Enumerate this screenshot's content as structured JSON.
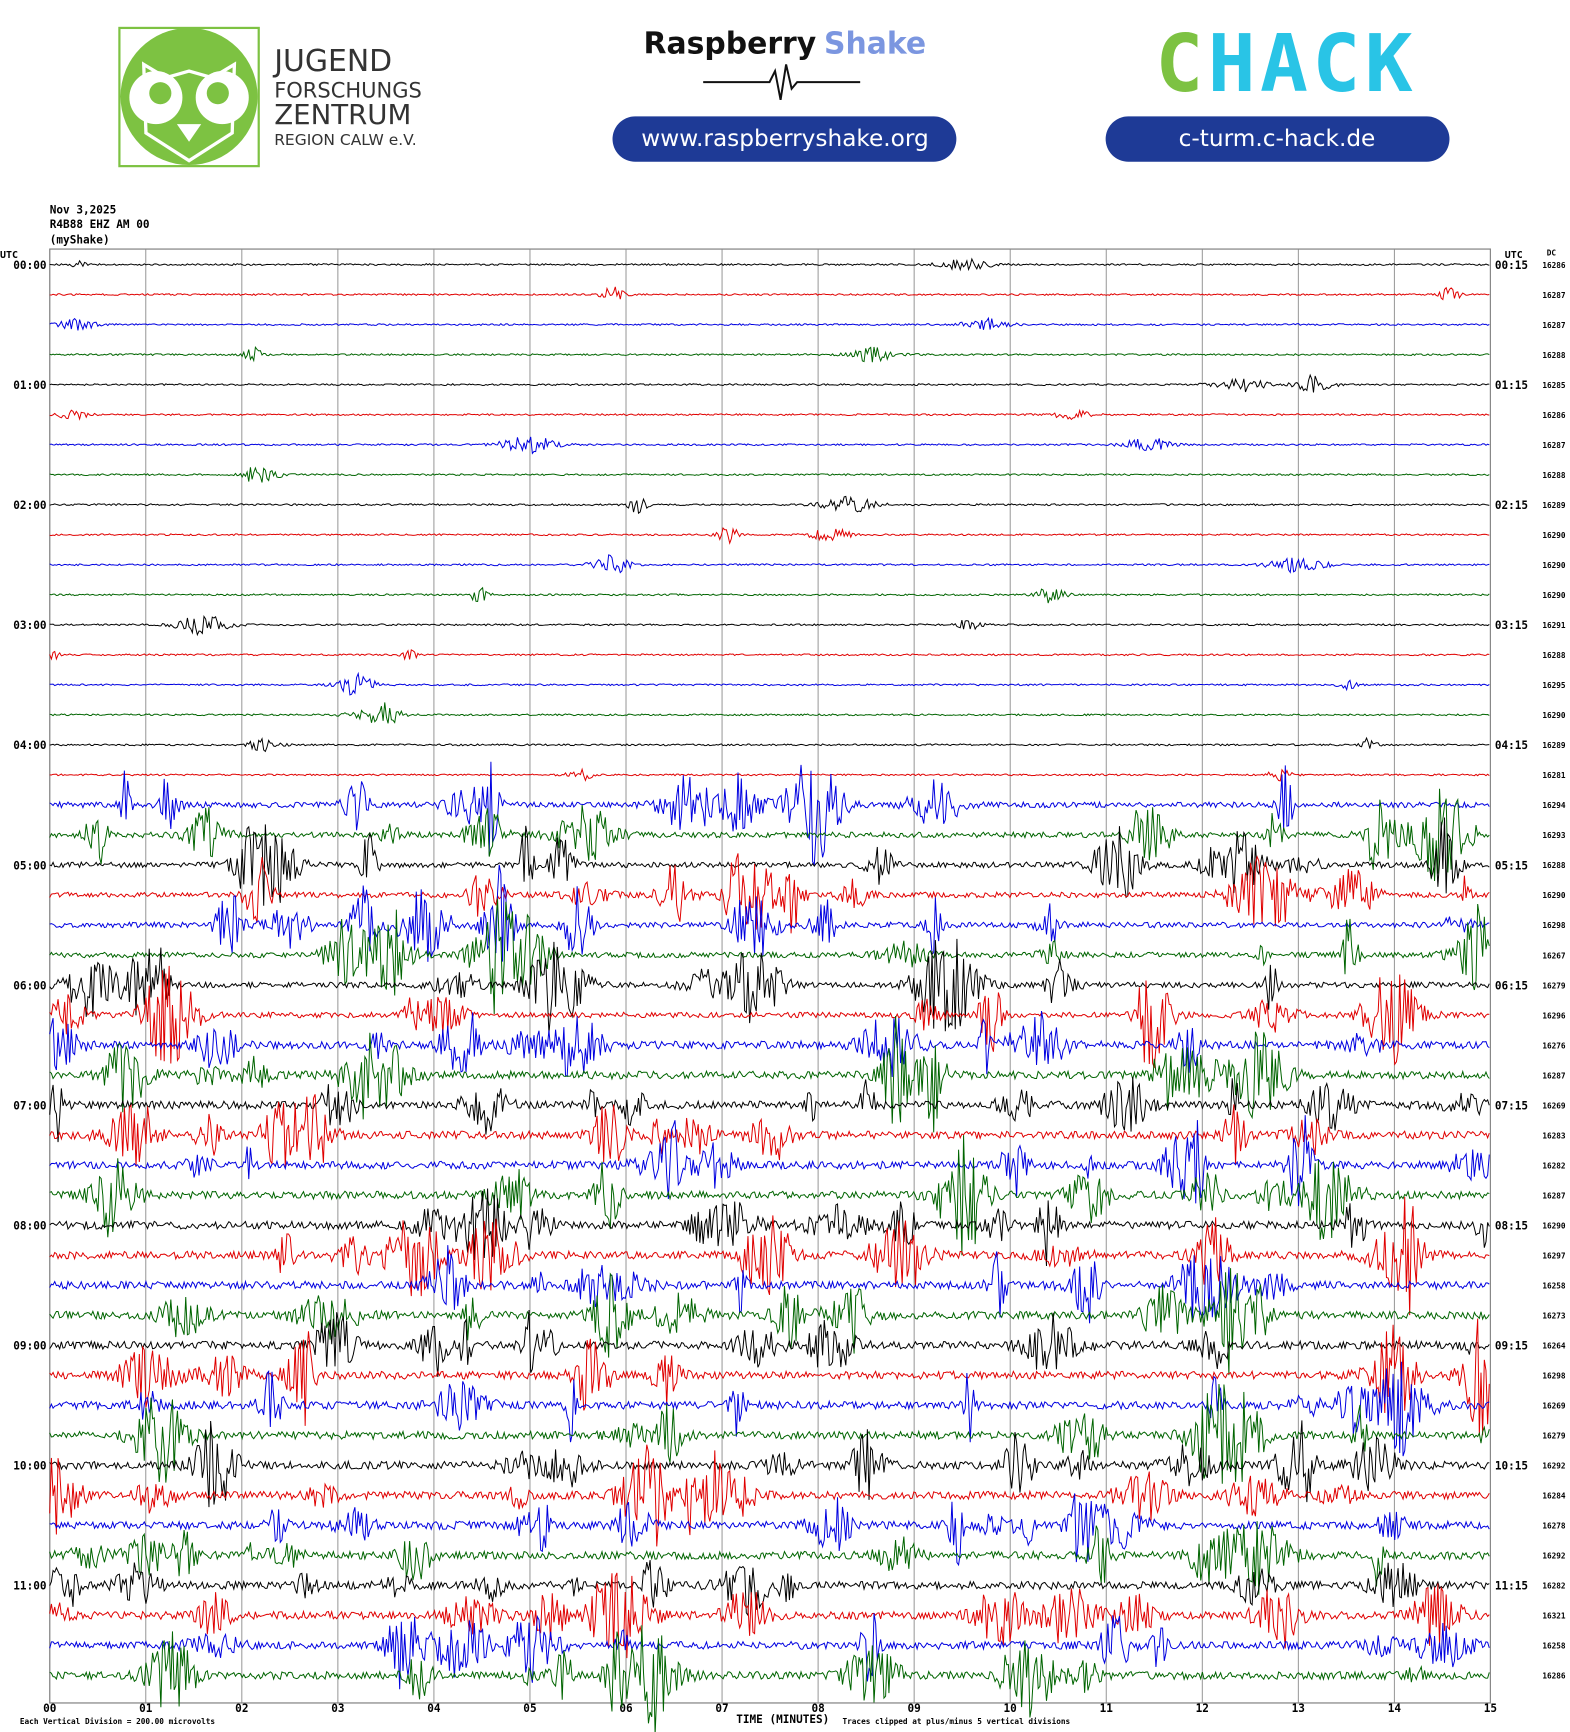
{
  "header": {
    "jfz_lines": [
      "JUGEND",
      "FORSCHUNGS",
      "ZENTRUM",
      "REGION CALW e.V."
    ],
    "rs_name": "Raspberry",
    "rs_shake": "Shake",
    "rs_url": "www.raspberryshake.org",
    "chack_c": "C",
    "chack_rest": "HACK",
    "chack_url": "c-turm.c-hack.de"
  },
  "chart_data": {
    "type": "helicorder",
    "date": "Nov 3,2025",
    "station": "R4B88 EHZ AM 00",
    "source": "(myShake)",
    "utc_left": "UTC",
    "utc_right": "UTC",
    "dc_label": "DC",
    "left_labels": [
      "00:00",
      "01:00",
      "02:00",
      "03:00",
      "04:00",
      "05:00",
      "06:00",
      "07:00",
      "08:00",
      "09:00",
      "10:00",
      "11:00"
    ],
    "right_labels": [
      "00:15",
      "01:15",
      "02:15",
      "03:15",
      "04:15",
      "05:15",
      "06:15",
      "07:15",
      "08:15",
      "09:15",
      "10:15",
      "11:15"
    ],
    "dc_values": [
      16286,
      16287,
      16287,
      16288,
      16285,
      16286,
      16287,
      16288,
      16289,
      16290,
      16290,
      16290,
      16291,
      16288,
      16295,
      16290,
      16289,
      16281,
      16294,
      16293,
      16288,
      16290,
      16298,
      16267,
      16279,
      16296,
      16276,
      16287,
      16269,
      16283,
      16282,
      16287,
      16290,
      16297,
      16258,
      16273,
      16264,
      16298,
      16269,
      16279,
      16292,
      16284,
      16278,
      16292,
      16282,
      16321,
      16258,
      16286
    ],
    "trace_colors": [
      "#000000",
      "#e00000",
      "#0000e0",
      "#006400"
    ],
    "xlim": [
      0,
      15
    ],
    "xticks": [
      {
        "value": 0,
        "label": "00"
      },
      {
        "value": 1,
        "label": "01"
      },
      {
        "value": 2,
        "label": "02"
      },
      {
        "value": 3,
        "label": "03"
      },
      {
        "value": 4,
        "label": "04"
      },
      {
        "value": 5,
        "label": "05"
      },
      {
        "value": 6,
        "label": "06"
      },
      {
        "value": 7,
        "label": "07"
      },
      {
        "value": 8,
        "label": "08"
      },
      {
        "value": 9,
        "label": "09"
      },
      {
        "value": 10,
        "label": "10"
      },
      {
        "value": 11,
        "label": "11"
      },
      {
        "value": 12,
        "label": "12"
      },
      {
        "value": 13,
        "label": "13"
      },
      {
        "value": 14,
        "label": "14"
      },
      {
        "value": 15,
        "label": "15"
      }
    ],
    "x_label": "TIME (MINUTES)",
    "scale_note": "Each Vertical Division =  200.00 microvolts",
    "clip_note": "Traces clipped at plus/minus 5 vertical divisions",
    "grid": true
  }
}
